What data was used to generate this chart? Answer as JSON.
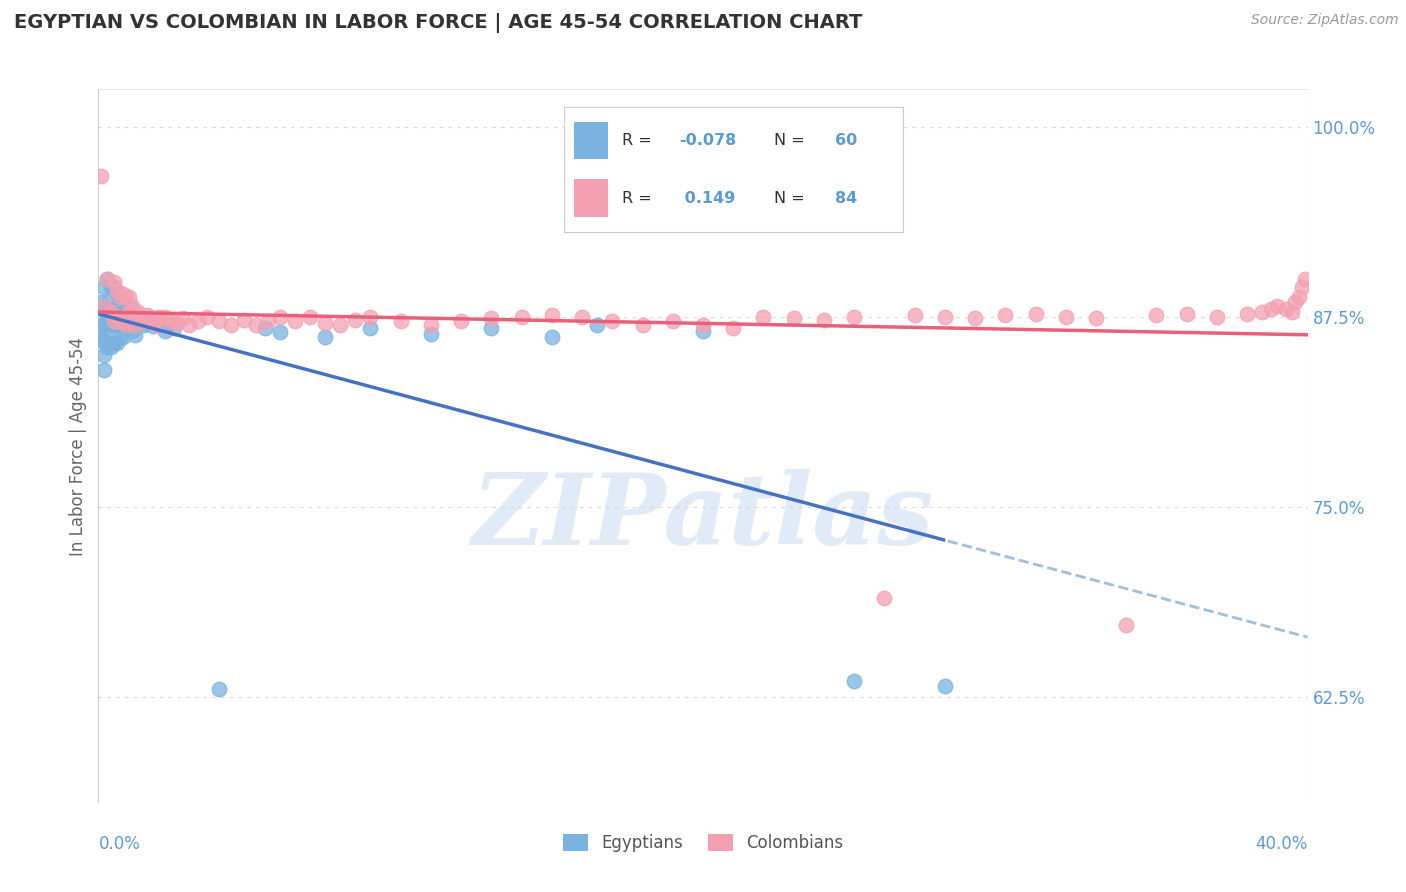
{
  "title": "EGYPTIAN VS COLOMBIAN IN LABOR FORCE | AGE 45-54 CORRELATION CHART",
  "source": "Source: ZipAtlas.com",
  "ylabel": "In Labor Force | Age 45-54",
  "xlim": [
    0.0,
    0.4
  ],
  "ylim": [
    0.555,
    1.025
  ],
  "egyptian_color": "#7ab3e0",
  "colombian_color": "#f4a0b0",
  "egyptian_R": -0.078,
  "egyptian_N": 60,
  "colombian_R": 0.149,
  "colombian_N": 84,
  "legend_egyptian": "Egyptians",
  "legend_colombian": "Colombians",
  "watermark": "ZIPatlas",
  "background_color": "#ffffff",
  "grid_color": "#dddddd",
  "title_color": "#333333",
  "axis_label_color": "#5b9bd5",
  "trend_blue": "#4472c4",
  "trend_blue_dash": "#a0bede",
  "trend_pink": "#e8607a",
  "egyptian_x": [
    0.001,
    0.001,
    0.001,
    0.002,
    0.002,
    0.002,
    0.002,
    0.002,
    0.002,
    0.003,
    0.003,
    0.003,
    0.003,
    0.003,
    0.004,
    0.004,
    0.004,
    0.004,
    0.005,
    0.005,
    0.005,
    0.005,
    0.006,
    0.006,
    0.006,
    0.006,
    0.007,
    0.007,
    0.007,
    0.008,
    0.008,
    0.008,
    0.009,
    0.009,
    0.01,
    0.01,
    0.011,
    0.011,
    0.012,
    0.012,
    0.013,
    0.014,
    0.015,
    0.016,
    0.018,
    0.02,
    0.022,
    0.025,
    0.04,
    0.055,
    0.06,
    0.075,
    0.09,
    0.11,
    0.13,
    0.15,
    0.165,
    0.2,
    0.25,
    0.28
  ],
  "egyptian_y": [
    0.885,
    0.87,
    0.86,
    0.895,
    0.88,
    0.87,
    0.86,
    0.85,
    0.84,
    0.9,
    0.885,
    0.875,
    0.865,
    0.855,
    0.895,
    0.88,
    0.87,
    0.855,
    0.895,
    0.88,
    0.87,
    0.858,
    0.89,
    0.88,
    0.87,
    0.858,
    0.888,
    0.876,
    0.862,
    0.885,
    0.874,
    0.862,
    0.882,
    0.87,
    0.882,
    0.87,
    0.878,
    0.866,
    0.876,
    0.863,
    0.871,
    0.874,
    0.87,
    0.871,
    0.869,
    0.87,
    0.866,
    0.868,
    0.63,
    0.868,
    0.865,
    0.862,
    0.868,
    0.864,
    0.868,
    0.862,
    0.87,
    0.866,
    0.635,
    0.632
  ],
  "colombian_x": [
    0.001,
    0.002,
    0.003,
    0.004,
    0.005,
    0.005,
    0.006,
    0.006,
    0.007,
    0.007,
    0.008,
    0.008,
    0.009,
    0.009,
    0.01,
    0.01,
    0.011,
    0.012,
    0.012,
    0.013,
    0.014,
    0.015,
    0.016,
    0.017,
    0.018,
    0.019,
    0.02,
    0.022,
    0.024,
    0.026,
    0.028,
    0.03,
    0.033,
    0.036,
    0.04,
    0.044,
    0.048,
    0.052,
    0.056,
    0.06,
    0.065,
    0.07,
    0.075,
    0.08,
    0.085,
    0.09,
    0.1,
    0.11,
    0.12,
    0.13,
    0.14,
    0.15,
    0.16,
    0.17,
    0.18,
    0.19,
    0.2,
    0.21,
    0.22,
    0.23,
    0.24,
    0.25,
    0.26,
    0.27,
    0.28,
    0.29,
    0.3,
    0.31,
    0.32,
    0.33,
    0.34,
    0.35,
    0.36,
    0.37,
    0.38,
    0.385,
    0.388,
    0.39,
    0.393,
    0.395,
    0.396,
    0.397,
    0.398,
    0.399
  ],
  "colombian_y": [
    0.968,
    0.882,
    0.9,
    0.878,
    0.898,
    0.872,
    0.892,
    0.875,
    0.888,
    0.872,
    0.89,
    0.872,
    0.888,
    0.87,
    0.888,
    0.878,
    0.882,
    0.878,
    0.87,
    0.878,
    0.875,
    0.872,
    0.876,
    0.875,
    0.871,
    0.87,
    0.875,
    0.875,
    0.872,
    0.871,
    0.874,
    0.87,
    0.872,
    0.875,
    0.872,
    0.87,
    0.873,
    0.87,
    0.872,
    0.875,
    0.872,
    0.875,
    0.871,
    0.87,
    0.873,
    0.875,
    0.872,
    0.87,
    0.872,
    0.874,
    0.875,
    0.876,
    0.875,
    0.872,
    0.87,
    0.872,
    0.87,
    0.868,
    0.875,
    0.874,
    0.873,
    0.875,
    0.69,
    0.876,
    0.875,
    0.874,
    0.876,
    0.877,
    0.875,
    0.874,
    0.672,
    0.876,
    0.877,
    0.875,
    0.877,
    0.878,
    0.88,
    0.882,
    0.88,
    0.878,
    0.885,
    0.888,
    0.895,
    0.9
  ]
}
